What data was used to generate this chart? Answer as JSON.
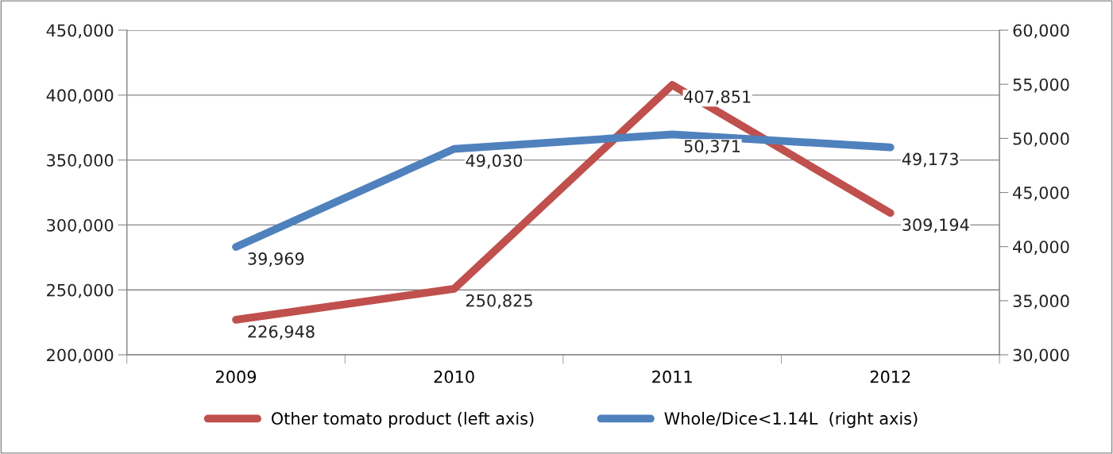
{
  "chart_data": {
    "type": "line",
    "categories": [
      "2009",
      "2010",
      "2011",
      "2012"
    ],
    "series": [
      {
        "name": "Other tomato product (left axis)",
        "color": "#c0504d",
        "values": [
          226948,
          250825,
          407851,
          309194
        ],
        "value_labels": [
          "226,948",
          "250,825",
          "407,851",
          "309,194"
        ]
      },
      {
        "name": "Whole/Dice<1.14L  (right axis)",
        "color": "#4f81bd",
        "axis": "y2",
        "values": [
          39969,
          49030,
          50371,
          49173
        ],
        "value_labels": [
          "39,969",
          "49,030",
          "50,371",
          "49,173"
        ]
      }
    ],
    "ylim": [
      200000,
      450000
    ],
    "yticks": [
      {
        "value": 200000,
        "label": "200,000"
      },
      {
        "value": 250000,
        "label": "250,000"
      },
      {
        "value": 300000,
        "label": "300,000"
      },
      {
        "value": 350000,
        "label": "350,000"
      },
      {
        "value": 400000,
        "label": "400,000"
      },
      {
        "value": 450000,
        "label": "450,000"
      }
    ],
    "y2lim": [
      30000,
      60000
    ],
    "y2ticks": [
      {
        "value": 30000,
        "label": "30,000"
      },
      {
        "value": 35000,
        "label": "35,000"
      },
      {
        "value": 40000,
        "label": "40,000"
      },
      {
        "value": 45000,
        "label": "45,000"
      },
      {
        "value": 50000,
        "label": "50,000"
      },
      {
        "value": 55000,
        "label": "55,000"
      },
      {
        "value": 60000,
        "label": "60,000"
      }
    ],
    "grid": "y",
    "legend": "bottom",
    "marker": "none",
    "line_style": "solid"
  }
}
